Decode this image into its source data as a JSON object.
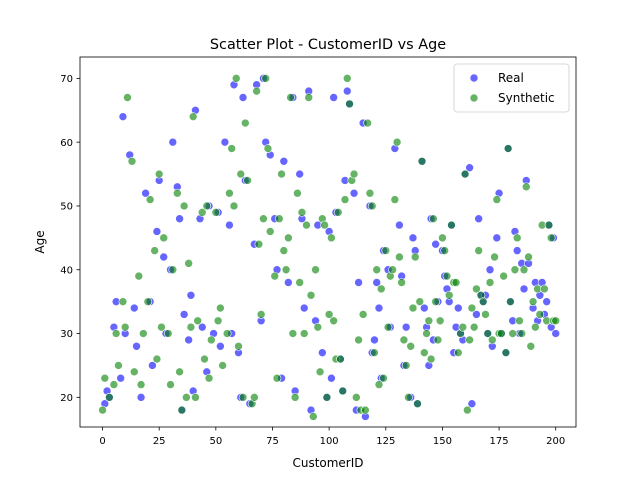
{
  "chart_data": {
    "type": "scatter",
    "title": "Scatter Plot - CustomerID vs Age",
    "xlabel": "CustomerID",
    "ylabel": "Age",
    "xlim": [
      -9.95,
      208.95
    ],
    "ylim": [
      15.35,
      73.35
    ],
    "xticks": [
      0,
      25,
      50,
      75,
      100,
      125,
      150,
      175,
      200
    ],
    "yticks": [
      20,
      30,
      40,
      50,
      60,
      70
    ],
    "grid": false,
    "legend": "top-right",
    "series": [
      {
        "name": "Real",
        "color": "#0000ff",
        "points": [
          [
            1,
            19
          ],
          [
            2,
            21
          ],
          [
            3,
            20
          ],
          [
            5,
            31
          ],
          [
            6,
            35
          ],
          [
            8,
            23
          ],
          [
            9,
            64
          ],
          [
            10,
            30
          ],
          [
            12,
            58
          ],
          [
            14,
            34
          ],
          [
            15,
            28
          ],
          [
            17,
            20
          ],
          [
            19,
            52
          ],
          [
            21,
            35
          ],
          [
            22,
            25
          ],
          [
            24,
            46
          ],
          [
            25,
            54
          ],
          [
            27,
            42
          ],
          [
            28,
            30
          ],
          [
            30,
            40
          ],
          [
            31,
            60
          ],
          [
            33,
            53
          ],
          [
            34,
            48
          ],
          [
            35,
            18
          ],
          [
            36,
            33
          ],
          [
            38,
            29
          ],
          [
            39,
            36
          ],
          [
            40,
            21
          ],
          [
            41,
            65
          ],
          [
            43,
            48
          ],
          [
            44,
            31
          ],
          [
            46,
            24
          ],
          [
            47,
            50
          ],
          [
            49,
            30
          ],
          [
            51,
            49
          ],
          [
            52,
            28
          ],
          [
            54,
            60
          ],
          [
            56,
            47
          ],
          [
            57,
            30
          ],
          [
            58,
            69
          ],
          [
            60,
            27
          ],
          [
            61,
            20
          ],
          [
            62,
            67
          ],
          [
            63,
            54
          ],
          [
            65,
            19
          ],
          [
            67,
            44
          ],
          [
            68,
            69
          ],
          [
            70,
            32
          ],
          [
            71,
            70
          ],
          [
            72,
            60
          ],
          [
            74,
            58
          ],
          [
            76,
            48
          ],
          [
            77,
            40
          ],
          [
            79,
            23
          ],
          [
            80,
            57
          ],
          [
            82,
            38
          ],
          [
            84,
            67
          ],
          [
            85,
            21
          ],
          [
            87,
            55
          ],
          [
            88,
            48
          ],
          [
            89,
            34
          ],
          [
            91,
            68
          ],
          [
            92,
            18
          ],
          [
            94,
            32
          ],
          [
            95,
            47
          ],
          [
            97,
            27
          ],
          [
            99,
            20
          ],
          [
            100,
            46
          ],
          [
            101,
            23
          ],
          [
            102,
            67
          ],
          [
            103,
            49
          ],
          [
            105,
            26
          ],
          [
            106,
            21
          ],
          [
            107,
            54
          ],
          [
            108,
            68
          ],
          [
            109,
            66
          ],
          [
            111,
            52
          ],
          [
            112,
            18
          ],
          [
            113,
            38
          ],
          [
            115,
            63
          ],
          [
            116,
            17
          ],
          [
            118,
            50
          ],
          [
            119,
            27
          ],
          [
            120,
            29
          ],
          [
            121,
            38
          ],
          [
            122,
            34
          ],
          [
            123,
            23
          ],
          [
            124,
            43
          ],
          [
            126,
            40
          ],
          [
            127,
            31
          ],
          [
            129,
            59
          ],
          [
            131,
            47
          ],
          [
            132,
            39
          ],
          [
            133,
            25
          ],
          [
            134,
            31
          ],
          [
            136,
            20
          ],
          [
            137,
            45
          ],
          [
            138,
            43
          ],
          [
            139,
            19
          ],
          [
            141,
            57
          ],
          [
            142,
            34
          ],
          [
            143,
            31
          ],
          [
            144,
            25
          ],
          [
            145,
            48
          ],
          [
            146,
            29
          ],
          [
            147,
            44
          ],
          [
            148,
            35
          ],
          [
            150,
            43
          ],
          [
            151,
            39
          ],
          [
            152,
            37
          ],
          [
            153,
            35
          ],
          [
            154,
            47
          ],
          [
            155,
            27
          ],
          [
            156,
            31
          ],
          [
            157,
            34
          ],
          [
            158,
            30
          ],
          [
            159,
            29
          ],
          [
            160,
            55
          ],
          [
            162,
            56
          ],
          [
            163,
            19
          ],
          [
            165,
            33
          ],
          [
            166,
            48
          ],
          [
            167,
            36
          ],
          [
            168,
            35
          ],
          [
            169,
            36
          ],
          [
            170,
            30
          ],
          [
            171,
            40
          ],
          [
            172,
            28
          ],
          [
            174,
            45
          ],
          [
            175,
            52
          ],
          [
            176,
            30
          ],
          [
            178,
            27
          ],
          [
            179,
            59
          ],
          [
            180,
            35
          ],
          [
            181,
            32
          ],
          [
            182,
            46
          ],
          [
            183,
            43
          ],
          [
            184,
            30
          ],
          [
            185,
            41
          ],
          [
            186,
            37
          ],
          [
            187,
            54
          ],
          [
            188,
            41
          ],
          [
            190,
            34
          ],
          [
            191,
            38
          ],
          [
            192,
            32
          ],
          [
            193,
            36
          ],
          [
            194,
            38
          ],
          [
            195,
            33
          ],
          [
            196,
            35
          ],
          [
            197,
            47
          ],
          [
            198,
            31
          ],
          [
            199,
            45
          ],
          [
            200,
            30
          ]
        ]
      },
      {
        "name": "Synthetic",
        "color": "#008000",
        "points": [
          [
            0,
            18
          ],
          [
            1,
            23
          ],
          [
            3,
            20
          ],
          [
            5,
            22
          ],
          [
            6,
            30
          ],
          [
            7,
            25
          ],
          [
            9,
            35
          ],
          [
            10,
            31
          ],
          [
            11,
            67
          ],
          [
            13,
            57
          ],
          [
            14,
            24
          ],
          [
            16,
            39
          ],
          [
            17,
            22
          ],
          [
            18,
            30
          ],
          [
            20,
            35
          ],
          [
            21,
            51
          ],
          [
            23,
            43
          ],
          [
            24,
            26
          ],
          [
            25,
            55
          ],
          [
            26,
            31
          ],
          [
            27,
            45
          ],
          [
            29,
            30
          ],
          [
            30,
            22
          ],
          [
            31,
            40
          ],
          [
            33,
            52
          ],
          [
            34,
            24
          ],
          [
            35,
            18
          ],
          [
            36,
            50
          ],
          [
            37,
            20
          ],
          [
            38,
            41
          ],
          [
            39,
            31
          ],
          [
            40,
            64
          ],
          [
            41,
            20
          ],
          [
            42,
            32
          ],
          [
            44,
            49
          ],
          [
            45,
            26
          ],
          [
            46,
            50
          ],
          [
            47,
            23
          ],
          [
            48,
            29
          ],
          [
            50,
            49
          ],
          [
            51,
            32
          ],
          [
            52,
            34
          ],
          [
            53,
            25
          ],
          [
            55,
            30
          ],
          [
            56,
            52
          ],
          [
            57,
            59
          ],
          [
            58,
            50
          ],
          [
            59,
            70
          ],
          [
            60,
            28
          ],
          [
            61,
            55
          ],
          [
            62,
            20
          ],
          [
            63,
            63
          ],
          [
            64,
            54
          ],
          [
            66,
            19
          ],
          [
            67,
            20
          ],
          [
            68,
            68
          ],
          [
            69,
            44
          ],
          [
            70,
            33
          ],
          [
            71,
            48
          ],
          [
            72,
            70
          ],
          [
            73,
            59
          ],
          [
            74,
            46
          ],
          [
            76,
            39
          ],
          [
            77,
            23
          ],
          [
            78,
            48
          ],
          [
            79,
            55
          ],
          [
            80,
            43
          ],
          [
            81,
            40
          ],
          [
            82,
            45
          ],
          [
            83,
            67
          ],
          [
            84,
            30
          ],
          [
            85,
            20
          ],
          [
            86,
            52
          ],
          [
            87,
            38
          ],
          [
            88,
            49
          ],
          [
            89,
            30
          ],
          [
            90,
            47
          ],
          [
            91,
            67
          ],
          [
            92,
            36
          ],
          [
            93,
            17
          ],
          [
            94,
            40
          ],
          [
            95,
            31
          ],
          [
            96,
            24
          ],
          [
            97,
            48
          ],
          [
            98,
            47
          ],
          [
            99,
            20
          ],
          [
            100,
            33
          ],
          [
            101,
            45
          ],
          [
            102,
            32
          ],
          [
            103,
            26
          ],
          [
            104,
            49
          ],
          [
            105,
            26
          ],
          [
            106,
            21
          ],
          [
            107,
            51
          ],
          [
            108,
            70
          ],
          [
            109,
            66
          ],
          [
            110,
            54
          ],
          [
            111,
            55
          ],
          [
            112,
            20
          ],
          [
            113,
            29
          ],
          [
            114,
            18
          ],
          [
            115,
            33
          ],
          [
            116,
            18
          ],
          [
            117,
            63
          ],
          [
            118,
            52
          ],
          [
            119,
            50
          ],
          [
            120,
            27
          ],
          [
            121,
            40
          ],
          [
            122,
            22
          ],
          [
            123,
            37
          ],
          [
            124,
            23
          ],
          [
            125,
            43
          ],
          [
            126,
            31
          ],
          [
            127,
            39
          ],
          [
            128,
            40
          ],
          [
            129,
            51
          ],
          [
            130,
            60
          ],
          [
            131,
            42
          ],
          [
            132,
            38
          ],
          [
            133,
            29
          ],
          [
            134,
            25
          ],
          [
            135,
            20
          ],
          [
            136,
            28
          ],
          [
            137,
            34
          ],
          [
            138,
            42
          ],
          [
            139,
            19
          ],
          [
            140,
            35
          ],
          [
            141,
            57
          ],
          [
            142,
            27
          ],
          [
            143,
            30
          ],
          [
            144,
            32
          ],
          [
            145,
            26
          ],
          [
            146,
            48
          ],
          [
            147,
            35
          ],
          [
            148,
            29
          ],
          [
            149,
            32
          ],
          [
            150,
            45
          ],
          [
            151,
            43
          ],
          [
            152,
            39
          ],
          [
            153,
            36
          ],
          [
            154,
            47
          ],
          [
            155,
            38
          ],
          [
            156,
            38
          ],
          [
            157,
            27
          ],
          [
            158,
            30
          ],
          [
            159,
            31
          ],
          [
            160,
            55
          ],
          [
            161,
            18
          ],
          [
            162,
            29
          ],
          [
            163,
            34
          ],
          [
            164,
            31
          ],
          [
            165,
            37
          ],
          [
            166,
            43
          ],
          [
            167,
            36
          ],
          [
            168,
            35
          ],
          [
            169,
            33
          ],
          [
            170,
            30
          ],
          [
            171,
            38
          ],
          [
            172,
            29
          ],
          [
            173,
            42
          ],
          [
            174,
            51
          ],
          [
            175,
            30
          ],
          [
            176,
            30
          ],
          [
            177,
            39
          ],
          [
            178,
            27
          ],
          [
            179,
            59
          ],
          [
            180,
            35
          ],
          [
            181,
            30
          ],
          [
            182,
            40
          ],
          [
            183,
            45
          ],
          [
            184,
            32
          ],
          [
            185,
            30
          ],
          [
            186,
            40
          ],
          [
            187,
            53
          ],
          [
            188,
            42
          ],
          [
            189,
            28
          ],
          [
            190,
            35
          ],
          [
            191,
            31
          ],
          [
            192,
            37
          ],
          [
            193,
            33
          ],
          [
            194,
            47
          ],
          [
            195,
            37
          ],
          [
            196,
            32
          ],
          [
            197,
            47
          ],
          [
            198,
            45
          ],
          [
            199,
            32
          ],
          [
            200,
            32
          ]
        ]
      }
    ]
  }
}
